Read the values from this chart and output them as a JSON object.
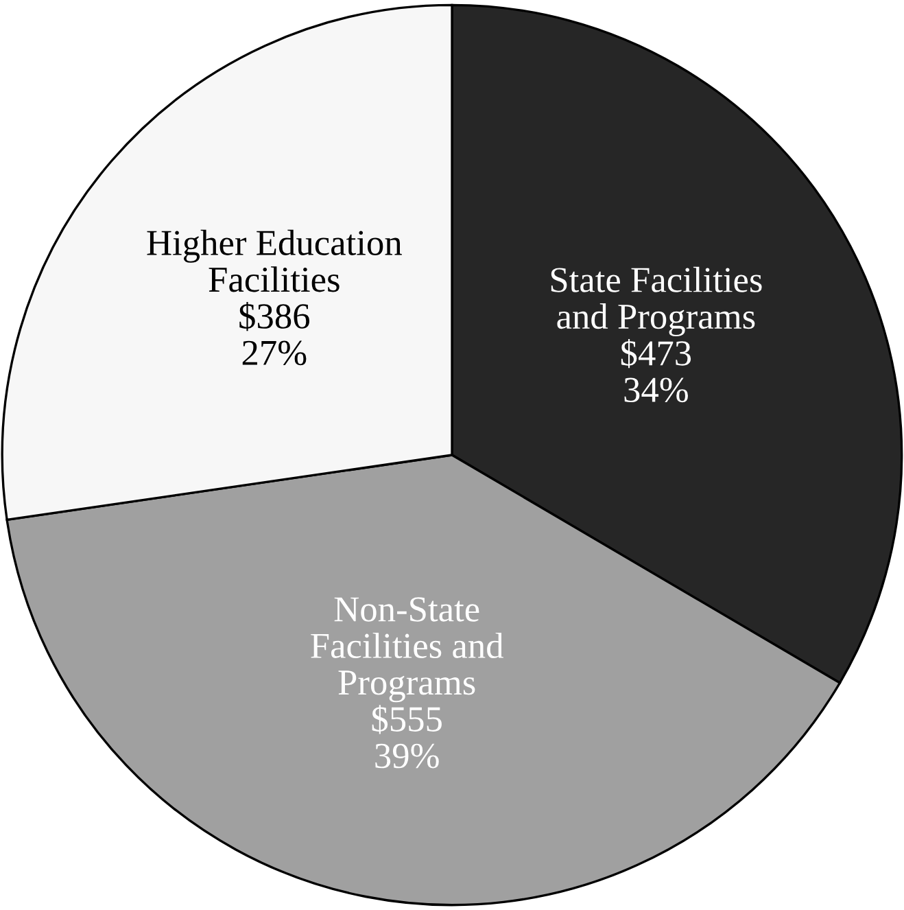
{
  "chart_data": {
    "type": "pie",
    "categories": [
      "State Facilities\nand Programs",
      "Non-State\nFacilities and\nPrograms",
      "Higher Education\nFacilities"
    ],
    "values": [
      473,
      555,
      386
    ],
    "value_labels": [
      "$473\n34%",
      "$555\n39%",
      "$386\n27%"
    ],
    "colors": [
      "#262626",
      "#a0a0a0",
      "#f7f7f7"
    ]
  }
}
